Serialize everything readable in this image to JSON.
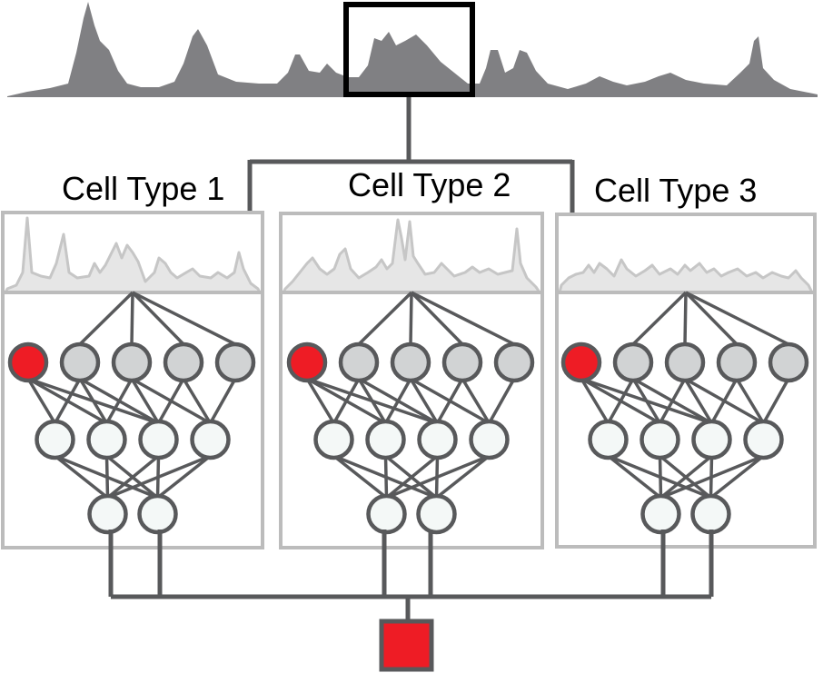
{
  "panels": [
    {
      "title": "Cell Type 1"
    },
    {
      "title": "Cell Type 2"
    },
    {
      "title": "Cell Type 3"
    }
  ],
  "network": {
    "layers": [
      5,
      4,
      2
    ],
    "highlighted_input": 0
  },
  "colors": {
    "signal": "#808083",
    "signal_track": "#c6c6c6",
    "panel_border": "#bcbcbc",
    "node_stroke": "#58595b",
    "input_node_fill": "#d1d3d4",
    "hidden_node_fill": "#f4f8f7",
    "highlight": "#ee1c25",
    "connector": "#58595b",
    "selection_box": "#000000"
  }
}
